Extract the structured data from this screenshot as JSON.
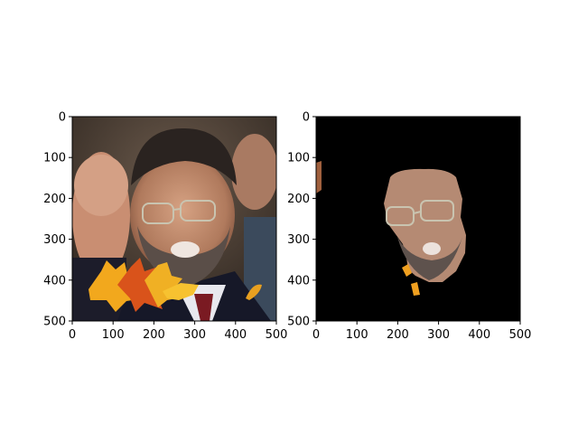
{
  "figure": {
    "background": "#ffffff",
    "panels": [
      {
        "id": "original-image",
        "image_content": "photo of a bearded man with glasses in a suit, autumn leaves overlay at bottom-left",
        "xticks": [
          "0",
          "100",
          "200",
          "300",
          "400",
          "500"
        ],
        "yticks": [
          "0",
          "100",
          "200",
          "300",
          "400",
          "500"
        ]
      },
      {
        "id": "masked-image",
        "image_content": "segmented face on black background",
        "xticks": [
          "0",
          "100",
          "200",
          "300",
          "400",
          "500"
        ],
        "yticks": [
          "0",
          "100",
          "200",
          "300",
          "400",
          "500"
        ]
      }
    ]
  },
  "chart_data": [
    {
      "type": "image",
      "xlim": [
        0,
        500
      ],
      "ylim": [
        500,
        0
      ],
      "x_ticks": [
        0,
        100,
        200,
        300,
        400,
        500
      ],
      "y_ticks": [
        0,
        100,
        200,
        300,
        400,
        500
      ],
      "grid": false
    },
    {
      "type": "image",
      "xlim": [
        0,
        500
      ],
      "ylim": [
        500,
        0
      ],
      "x_ticks": [
        0,
        100,
        200,
        300,
        400,
        500
      ],
      "y_ticks": [
        0,
        100,
        200,
        300,
        400,
        500
      ],
      "grid": false,
      "background_color": "#000000"
    }
  ]
}
